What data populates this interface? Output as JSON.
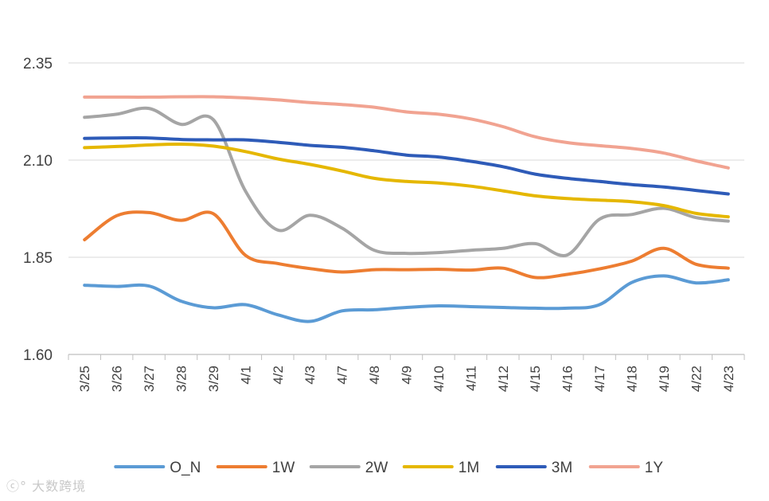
{
  "chart_data": {
    "type": "line",
    "title": "",
    "xlabel": "",
    "ylabel": "",
    "ylim": [
      1.6,
      2.35
    ],
    "yticks": [
      "2.35",
      "2.10",
      "1.85",
      "1.60"
    ],
    "categories": [
      "3/25",
      "3/26",
      "3/27",
      "3/28",
      "3/29",
      "4/1",
      "4/2",
      "4/3",
      "4/7",
      "4/8",
      "4/9",
      "4/10",
      "4/11",
      "4/12",
      "4/15",
      "4/16",
      "4/17",
      "4/18",
      "4/19",
      "4/22",
      "4/23"
    ],
    "legend_position": "bottom",
    "grid": true,
    "series": [
      {
        "name": "O_N",
        "color": "#5B9BD5",
        "values": [
          1.778,
          1.775,
          1.776,
          1.737,
          1.72,
          1.728,
          1.702,
          1.685,
          1.712,
          1.715,
          1.721,
          1.725,
          1.723,
          1.721,
          1.719,
          1.719,
          1.728,
          1.785,
          1.802,
          1.784,
          1.792
        ]
      },
      {
        "name": "1W",
        "color": "#ED7D31",
        "values": [
          1.895,
          1.957,
          1.965,
          1.945,
          1.962,
          1.855,
          1.834,
          1.821,
          1.812,
          1.818,
          1.818,
          1.819,
          1.817,
          1.822,
          1.798,
          1.806,
          1.82,
          1.84,
          1.873,
          1.832,
          1.822
        ]
      },
      {
        "name": "2W",
        "color": "#A5A5A5",
        "values": [
          2.21,
          2.218,
          2.233,
          2.192,
          2.204,
          2.02,
          1.92,
          1.958,
          1.925,
          1.868,
          1.86,
          1.862,
          1.868,
          1.873,
          1.885,
          1.856,
          1.948,
          1.96,
          1.976,
          1.952,
          1.943
        ]
      },
      {
        "name": "1M",
        "color": "#E5B700",
        "values": [
          2.132,
          2.135,
          2.139,
          2.141,
          2.136,
          2.122,
          2.103,
          2.089,
          2.072,
          2.053,
          2.045,
          2.041,
          2.033,
          2.021,
          2.008,
          2.001,
          1.997,
          1.993,
          1.983,
          1.963,
          1.954
        ]
      },
      {
        "name": "3M",
        "color": "#2E5BB8",
        "values": [
          2.156,
          2.157,
          2.157,
          2.153,
          2.152,
          2.152,
          2.146,
          2.138,
          2.133,
          2.124,
          2.113,
          2.108,
          2.097,
          2.083,
          2.064,
          2.053,
          2.045,
          2.037,
          2.031,
          2.022,
          2.013
        ]
      },
      {
        "name": "1Y",
        "color": "#F1A391",
        "values": [
          2.262,
          2.262,
          2.262,
          2.263,
          2.263,
          2.26,
          2.255,
          2.248,
          2.243,
          2.236,
          2.224,
          2.218,
          2.206,
          2.186,
          2.16,
          2.145,
          2.137,
          2.13,
          2.118,
          2.098,
          2.08
        ]
      }
    ]
  },
  "watermark": "大数跨境"
}
